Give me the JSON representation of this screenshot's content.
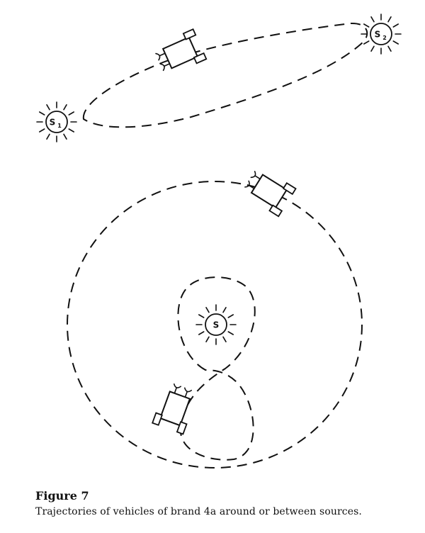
{
  "figure": {
    "title": "Figure 7",
    "caption": "Trajectories of vehicles of brand 4a around or between sources."
  },
  "sources": [
    {
      "letter": "S",
      "subscript": "1"
    },
    {
      "letter": "S",
      "subscript": "2"
    },
    {
      "letter": "S",
      "subscript": ""
    }
  ]
}
